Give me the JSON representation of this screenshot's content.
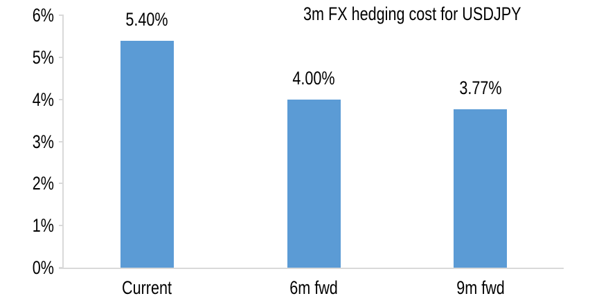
{
  "chart_data": {
    "type": "bar",
    "title": "3m FX hedging cost for USDJPY",
    "categories": [
      "Current",
      "6m fwd",
      "9m fwd"
    ],
    "values": [
      5.4,
      4.0,
      3.77
    ],
    "data_labels": [
      "5.40%",
      "4.00%",
      "3.77%"
    ],
    "xlabel": "",
    "ylabel": "",
    "ylim": [
      0,
      6
    ],
    "y_tick_interval": 1,
    "y_tick_labels_top_to_bottom": [
      "6%",
      "5%",
      "4%",
      "3%",
      "2%",
      "1%",
      "0%"
    ],
    "grid": false,
    "legend_position": "none",
    "bar_color": "#5B9BD5",
    "axis_color": "#D9D9D9",
    "text_color": "#000000",
    "background_color": "#FFFFFF"
  }
}
